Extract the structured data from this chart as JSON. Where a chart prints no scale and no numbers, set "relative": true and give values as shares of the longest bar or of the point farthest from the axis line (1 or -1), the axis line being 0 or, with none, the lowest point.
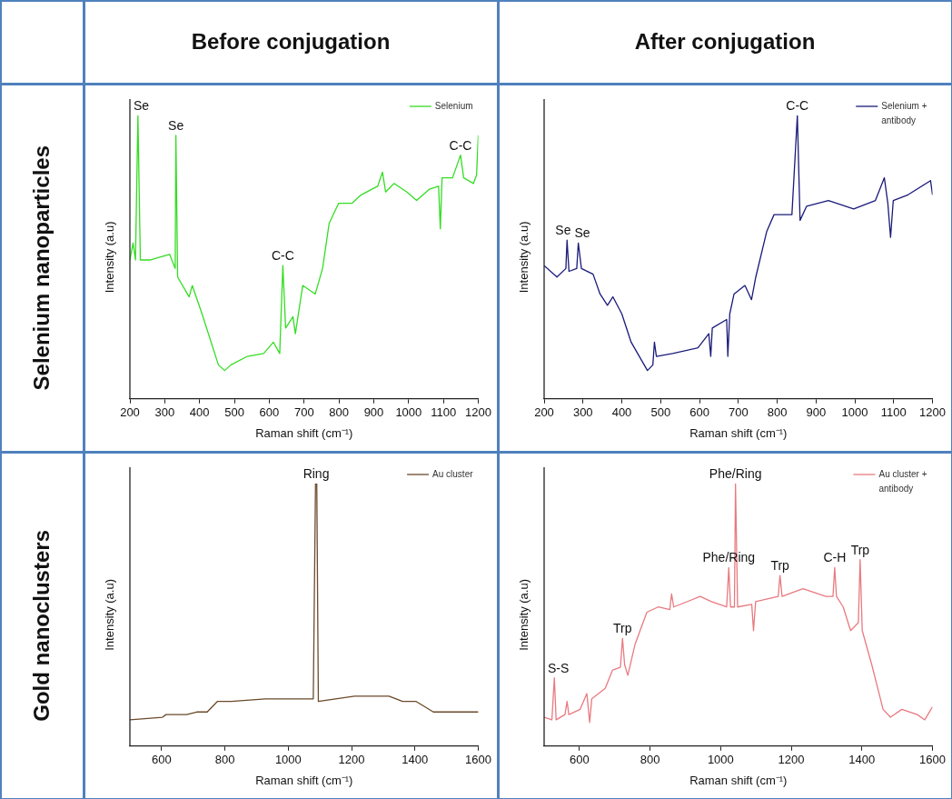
{
  "chart_data": [
    {
      "type": "line",
      "relative": true,
      "xlabel": "Raman shift (cm⁻¹)",
      "ylabel": "Intensity (a.u)",
      "xlim": [
        200,
        1200
      ],
      "xticks": [
        200,
        300,
        400,
        500,
        600,
        700,
        800,
        900,
        1000,
        1100,
        1200
      ],
      "grid": false,
      "legend": "top right",
      "marker": "none",
      "line_style": "solid",
      "x": [
        200,
        209,
        216,
        223,
        230,
        258,
        286,
        314,
        330,
        332,
        337,
        370,
        379,
        407,
        454,
        472,
        490,
        537,
        584,
        612,
        630,
        639,
        647,
        668,
        675,
        696,
        732,
        753,
        772,
        799,
        837,
        864,
        911,
        925,
        934,
        958,
        995,
        1023,
        1060,
        1086,
        1091,
        1096,
        1126,
        1149,
        1158,
        1186,
        1195,
        1200
      ],
      "series": [
        {
          "name": "Selenium",
          "color": "#33dd22",
          "values": [
            0.49,
            0.55,
            0.49,
            1.0,
            0.49,
            0.49,
            0.5,
            0.51,
            0.46,
            0.93,
            0.43,
            0.36,
            0.4,
            0.3,
            0.12,
            0.1,
            0.12,
            0.15,
            0.16,
            0.2,
            0.16,
            0.47,
            0.25,
            0.29,
            0.23,
            0.4,
            0.37,
            0.46,
            0.62,
            0.69,
            0.69,
            0.72,
            0.75,
            0.8,
            0.73,
            0.76,
            0.73,
            0.7,
            0.74,
            0.75,
            0.6,
            0.78,
            0.78,
            0.86,
            0.78,
            0.76,
            0.79,
            0.93
          ]
        }
      ],
      "annotations": [
        {
          "text": "Se",
          "x": 223,
          "y": 1.0
        },
        {
          "text": "Se",
          "x": 332,
          "y": 0.93
        },
        {
          "text": "C-C",
          "x": 639,
          "y": 0.47
        },
        {
          "text": "C-C",
          "x": 1149,
          "y": 0.86
        }
      ]
    },
    {
      "type": "line",
      "relative": true,
      "xlabel": "Raman shift (cm⁻¹)",
      "ylabel": "Intensity (a.u)",
      "xlim": [
        200,
        1200
      ],
      "xticks": [
        200,
        300,
        400,
        500,
        600,
        700,
        800,
        900,
        1000,
        1100,
        1200
      ],
      "grid": false,
      "legend": "top right",
      "marker": "none",
      "line_style": "solid",
      "x": [
        200,
        233,
        256,
        259,
        264,
        284,
        288,
        296,
        326,
        344,
        363,
        377,
        400,
        424,
        466,
        480,
        484,
        489,
        531,
        596,
        624,
        629,
        633,
        670,
        673,
        678,
        689,
        717,
        734,
        745,
        773,
        792,
        838,
        852,
        859,
        876,
        932,
        997,
        1053,
        1076,
        1085,
        1092,
        1099,
        1137,
        1195,
        1200
      ],
      "series": [
        {
          "name": "Selenium + antibody",
          "color": "#1a1a7a",
          "values": [
            0.47,
            0.43,
            0.46,
            0.56,
            0.45,
            0.46,
            0.55,
            0.46,
            0.44,
            0.37,
            0.33,
            0.36,
            0.3,
            0.2,
            0.1,
            0.12,
            0.2,
            0.15,
            0.16,
            0.18,
            0.23,
            0.15,
            0.25,
            0.28,
            0.15,
            0.3,
            0.37,
            0.4,
            0.35,
            0.43,
            0.59,
            0.65,
            0.65,
            1.0,
            0.63,
            0.68,
            0.7,
            0.67,
            0.7,
            0.78,
            0.69,
            0.57,
            0.7,
            0.72,
            0.77,
            0.72
          ]
        }
      ],
      "annotations": [
        {
          "text": "Se",
          "x": 259,
          "y": 0.56
        },
        {
          "text": "Se",
          "x": 288,
          "y": 0.55
        },
        {
          "text": "C-C",
          "x": 852,
          "y": 1.0
        }
      ]
    },
    {
      "type": "line",
      "relative": true,
      "xlabel": "Raman shift (cm⁻¹)",
      "ylabel": "Intensity (a.u)",
      "xlim": [
        500,
        1600
      ],
      "xticks": [
        600,
        800,
        1000,
        1200,
        1400,
        1600
      ],
      "grid": false,
      "legend": "top right",
      "marker": "none",
      "line_style": "solid",
      "x": [
        500,
        603,
        614,
        679,
        711,
        744,
        776,
        820,
        928,
        1079,
        1086,
        1090,
        1095,
        1209,
        1318,
        1361,
        1404,
        1458,
        1524,
        1600
      ],
      "series": [
        {
          "name": "Au cluster",
          "color": "#6b4a2a",
          "values": [
            0.1,
            0.11,
            0.12,
            0.12,
            0.13,
            0.13,
            0.17,
            0.17,
            0.18,
            0.18,
            1.0,
            1.0,
            0.17,
            0.19,
            0.19,
            0.17,
            0.17,
            0.13,
            0.13,
            0.13
          ]
        }
      ],
      "annotations": [
        {
          "text": "Ring",
          "x": 1088,
          "y": 1.0
        }
      ]
    },
    {
      "type": "line",
      "relative": true,
      "xlabel": "Raman shift (cm⁻¹)",
      "ylabel": "Intensity (a.u)",
      "xlim": [
        500,
        1600
      ],
      "xticks": [
        600,
        800,
        1000,
        1200,
        1400,
        1600
      ],
      "grid": false,
      "legend": "top right",
      "marker": "none",
      "line_style": "solid",
      "x": [
        500,
        522,
        529,
        534,
        559,
        565,
        570,
        602,
        621,
        629,
        635,
        673,
        694,
        716,
        722,
        728,
        737,
        758,
        791,
        823,
        856,
        861,
        867,
        942,
        974,
        1017,
        1023,
        1028,
        1039,
        1042,
        1048,
        1088,
        1093,
        1099,
        1163,
        1168,
        1174,
        1233,
        1298,
        1318,
        1323,
        1328,
        1347,
        1368,
        1390,
        1395,
        1401,
        1428,
        1460,
        1481,
        1513,
        1557,
        1578,
        1600
      ],
      "series": [
        {
          "name": "Au cluster + antibody",
          "color": "#e87a80",
          "values": [
            0.11,
            0.1,
            0.26,
            0.1,
            0.12,
            0.17,
            0.12,
            0.14,
            0.2,
            0.09,
            0.18,
            0.22,
            0.29,
            0.3,
            0.41,
            0.31,
            0.27,
            0.39,
            0.51,
            0.53,
            0.52,
            0.58,
            0.53,
            0.57,
            0.55,
            0.53,
            0.68,
            0.53,
            0.53,
            1.0,
            0.53,
            0.54,
            0.44,
            0.55,
            0.57,
            0.65,
            0.57,
            0.6,
            0.57,
            0.57,
            0.68,
            0.57,
            0.53,
            0.44,
            0.47,
            0.71,
            0.44,
            0.31,
            0.14,
            0.11,
            0.14,
            0.12,
            0.1,
            0.15
          ]
        }
      ],
      "annotations": [
        {
          "text": "S-S",
          "x": 529,
          "y": 0.26
        },
        {
          "text": "Trp",
          "x": 722,
          "y": 0.41
        },
        {
          "text": "Phe/Ring",
          "x": 1023,
          "y": 0.68
        },
        {
          "text": "Phe/Ring",
          "x": 1042,
          "y": 1.0
        },
        {
          "text": "Trp",
          "x": 1168,
          "y": 0.65
        },
        {
          "text": "C-H",
          "x": 1323,
          "y": 0.68
        },
        {
          "text": "Trp",
          "x": 1395,
          "y": 0.71
        }
      ]
    },
    {
      "type": "other",
      "annotations": [
        "Before conjugation",
        "After conjugation",
        "Selenium nanoparticles",
        "Gold nanoclusters"
      ]
    }
  ]
}
